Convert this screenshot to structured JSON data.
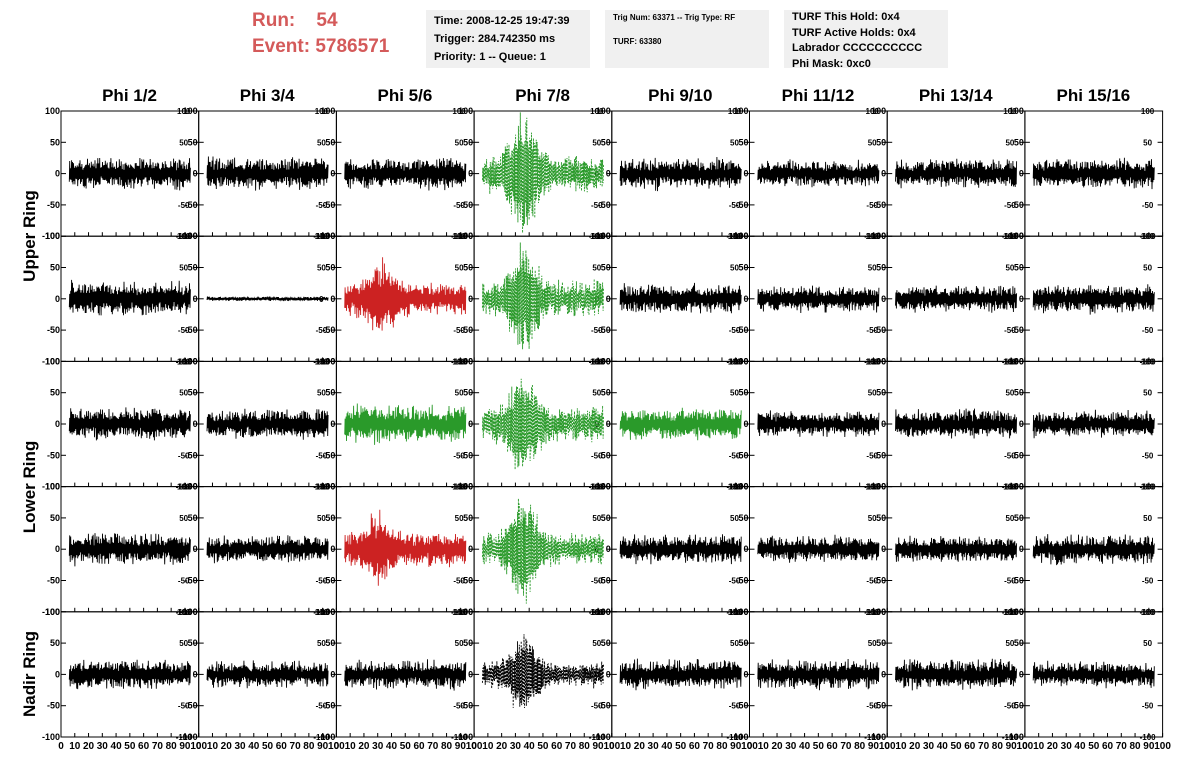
{
  "header": {
    "run_label": "Run:",
    "run_value": "54",
    "event_label": "Event:",
    "event_value": "5786571"
  },
  "time_box": {
    "time": "Time: 2008-12-25 19:47:39",
    "trigger": "Trigger: 284.742350 ms",
    "priority": "Priority: 1 -- Queue: 1"
  },
  "trig_box": {
    "trig": "Trig Num: 63371 -- Trig Type: RF",
    "turf": "TURF: 63380"
  },
  "turf_box": {
    "hold": "TURF This Hold: 0x4",
    "active": "TURF Active Holds: 0x4",
    "labrador": "Labrador CCCCCCCCCC",
    "mask": "Phi Mask: 0xc0"
  },
  "colors": {
    "normal": "#000000",
    "red": "#cc2222",
    "green": "#2a9a2a",
    "title_red": "#d45a5a"
  },
  "chart_data": {
    "type": "line",
    "columns": [
      "Phi 1/2",
      "Phi 3/4",
      "Phi 5/6",
      "Phi 7/8",
      "Phi 9/10",
      "Phi 11/12",
      "Phi 13/14",
      "Phi 15/16"
    ],
    "row_groups": [
      {
        "label": "Upper Ring",
        "rows": [
          0,
          1
        ]
      },
      {
        "label": "Lower Ring",
        "rows": [
          2,
          3
        ]
      },
      {
        "label": "Nadir Ring",
        "rows": [
          4
        ]
      }
    ],
    "xlim": [
      0,
      100
    ],
    "ylim": [
      -100,
      100
    ],
    "x_ticks": [
      0,
      10,
      20,
      30,
      40,
      50,
      60,
      70,
      80,
      90,
      100
    ],
    "y_ticks": [
      -100,
      -50,
      0,
      50,
      100
    ],
    "x_tick_labels": [
      "0",
      "10",
      "20",
      "30",
      "40",
      "50",
      "60",
      "70",
      "80",
      "90",
      "100"
    ],
    "y_tick_labels": [
      "-100",
      "-50",
      "0",
      "50",
      "100"
    ],
    "grid": false,
    "panels": [
      {
        "row": 0,
        "col": 0,
        "color": "black",
        "style": "solid",
        "amp": 22
      },
      {
        "row": 0,
        "col": 1,
        "color": "black",
        "style": "solid",
        "amp": 22
      },
      {
        "row": 0,
        "col": 2,
        "color": "black",
        "style": "solid",
        "amp": 22
      },
      {
        "row": 0,
        "col": 3,
        "color": "green",
        "style": "dashed",
        "amp": 25,
        "pulse": 80,
        "pulse_x": 36
      },
      {
        "row": 0,
        "col": 4,
        "color": "black",
        "style": "solid",
        "amp": 22
      },
      {
        "row": 0,
        "col": 5,
        "color": "black",
        "style": "solid",
        "amp": 18
      },
      {
        "row": 0,
        "col": 6,
        "color": "black",
        "style": "solid",
        "amp": 20
      },
      {
        "row": 0,
        "col": 7,
        "color": "black",
        "style": "solid",
        "amp": 20
      },
      {
        "row": 1,
        "col": 0,
        "color": "black",
        "style": "solid",
        "amp": 24
      },
      {
        "row": 1,
        "col": 1,
        "color": "black",
        "style": "solid",
        "amp": 3
      },
      {
        "row": 1,
        "col": 2,
        "color": "red",
        "style": "solid",
        "amp": 24,
        "pulse": 40,
        "pulse_x": 33
      },
      {
        "row": 1,
        "col": 3,
        "color": "green",
        "style": "dashed",
        "amp": 25,
        "pulse": 75,
        "pulse_x": 36
      },
      {
        "row": 1,
        "col": 4,
        "color": "black",
        "style": "solid",
        "amp": 20
      },
      {
        "row": 1,
        "col": 5,
        "color": "black",
        "style": "solid",
        "amp": 18
      },
      {
        "row": 1,
        "col": 6,
        "color": "black",
        "style": "solid",
        "amp": 18
      },
      {
        "row": 1,
        "col": 7,
        "color": "black",
        "style": "solid",
        "amp": 20
      },
      {
        "row": 2,
        "col": 0,
        "color": "black",
        "style": "solid",
        "amp": 22
      },
      {
        "row": 2,
        "col": 1,
        "color": "black",
        "style": "solid",
        "amp": 20
      },
      {
        "row": 2,
        "col": 2,
        "color": "green",
        "style": "solid",
        "amp": 26
      },
      {
        "row": 2,
        "col": 3,
        "color": "green",
        "style": "dashed",
        "amp": 25,
        "pulse": 70,
        "pulse_x": 36
      },
      {
        "row": 2,
        "col": 4,
        "color": "green",
        "style": "solid",
        "amp": 22
      },
      {
        "row": 2,
        "col": 5,
        "color": "black",
        "style": "solid",
        "amp": 18
      },
      {
        "row": 2,
        "col": 6,
        "color": "black",
        "style": "solid",
        "amp": 20
      },
      {
        "row": 2,
        "col": 7,
        "color": "black",
        "style": "solid",
        "amp": 18
      },
      {
        "row": 3,
        "col": 0,
        "color": "black",
        "style": "solid",
        "amp": 22
      },
      {
        "row": 3,
        "col": 1,
        "color": "black",
        "style": "solid",
        "amp": 18
      },
      {
        "row": 3,
        "col": 2,
        "color": "red",
        "style": "solid",
        "amp": 24,
        "pulse": 35,
        "pulse_x": 30
      },
      {
        "row": 3,
        "col": 3,
        "color": "green",
        "style": "dashed",
        "amp": 22,
        "pulse": 80,
        "pulse_x": 36
      },
      {
        "row": 3,
        "col": 4,
        "color": "black",
        "style": "solid",
        "amp": 20
      },
      {
        "row": 3,
        "col": 5,
        "color": "black",
        "style": "solid",
        "amp": 18
      },
      {
        "row": 3,
        "col": 6,
        "color": "black",
        "style": "solid",
        "amp": 18
      },
      {
        "row": 3,
        "col": 7,
        "color": "black",
        "style": "solid",
        "amp": 20
      },
      {
        "row": 4,
        "col": 0,
        "color": "black",
        "style": "solid",
        "amp": 20
      },
      {
        "row": 4,
        "col": 1,
        "color": "black",
        "style": "solid",
        "amp": 18
      },
      {
        "row": 4,
        "col": 2,
        "color": "black",
        "style": "solid",
        "amp": 20
      },
      {
        "row": 4,
        "col": 3,
        "color": "black",
        "style": "dashed",
        "amp": 18,
        "pulse": 55,
        "pulse_x": 36
      },
      {
        "row": 4,
        "col": 4,
        "color": "black",
        "style": "solid",
        "amp": 20
      },
      {
        "row": 4,
        "col": 5,
        "color": "black",
        "style": "solid",
        "amp": 20
      },
      {
        "row": 4,
        "col": 6,
        "color": "black",
        "style": "solid",
        "amp": 20
      },
      {
        "row": 4,
        "col": 7,
        "color": "black",
        "style": "solid",
        "amp": 18
      }
    ]
  }
}
